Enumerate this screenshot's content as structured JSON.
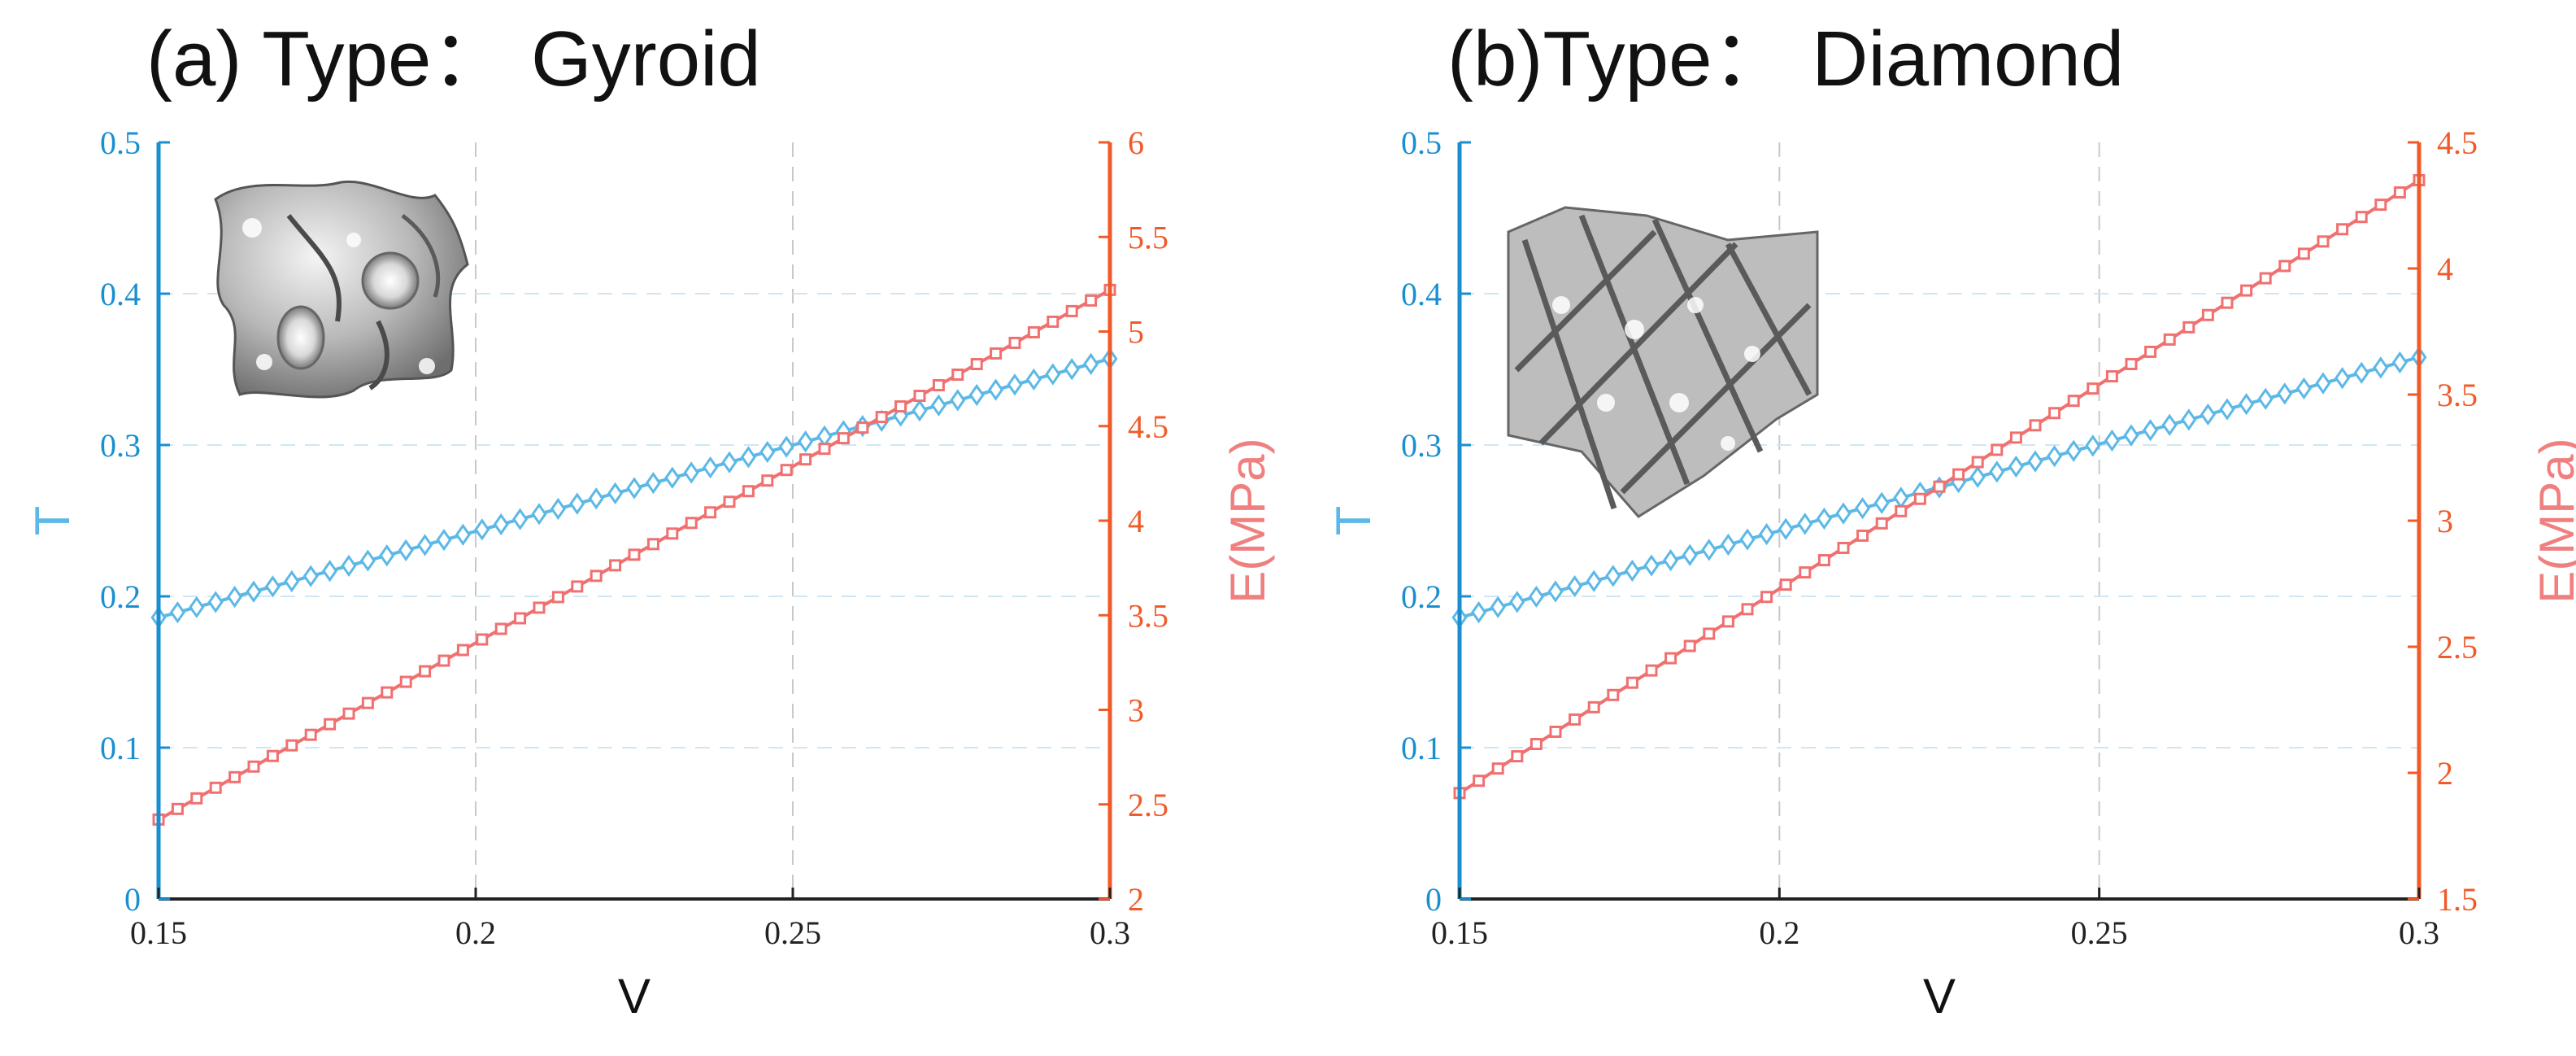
{
  "colors": {
    "left_axis": "#1a8fd0",
    "right_axis": "#f05a28",
    "series_T": "#5cb8e6",
    "series_E": "#f07070",
    "label_T": "#5cb8e6",
    "label_E": "#f08080",
    "grid": "#c9c9c9"
  },
  "chart_data": [
    {
      "type": "line",
      "title": "(a) Type： Gyroid",
      "inset": "gyroid-structure",
      "xlabel": "V",
      "ylabel": "T",
      "y2label": "E(MPa)",
      "xlim": [
        0.15,
        0.3
      ],
      "ylim": [
        0,
        0.5
      ],
      "y2lim": [
        2,
        6
      ],
      "x_ticks": [
        "0.15",
        "0.2",
        "0.25",
        "0.3"
      ],
      "y_ticks": [
        "0",
        "0.1",
        "0.2",
        "0.3",
        "0.4",
        "0.5"
      ],
      "y2_ticks": [
        "2",
        "2.5",
        "3",
        "3.5",
        "4",
        "4.5",
        "5",
        "5.5",
        "6"
      ],
      "grid": true,
      "series": [
        {
          "name": "T",
          "axis": "left",
          "marker": "diamond",
          "x_start": 0.15,
          "x_end": 0.3,
          "count": 51,
          "y_start": 0.186,
          "y_end": 0.357
        },
        {
          "name": "E(MPa)",
          "axis": "right",
          "marker": "square",
          "x_start": 0.15,
          "x_end": 0.3,
          "count": 51,
          "y_start": 2.42,
          "y_end": 5.22
        }
      ]
    },
    {
      "type": "line",
      "title": "(b)Type： Diamond",
      "inset": "diamond-structure",
      "xlabel": "V",
      "ylabel": "T",
      "y2label": "E(MPa)",
      "xlim": [
        0.15,
        0.3
      ],
      "ylim": [
        0,
        0.5
      ],
      "y2lim": [
        1.5,
        4.5
      ],
      "x_ticks": [
        "0.15",
        "0.2",
        "0.25",
        "0.3"
      ],
      "y_ticks": [
        "0",
        "0.1",
        "0.2",
        "0.3",
        "0.4",
        "0.5"
      ],
      "y2_ticks": [
        "1.5",
        "2",
        "2.5",
        "3",
        "3.5",
        "4",
        "4.5"
      ],
      "grid": true,
      "series": [
        {
          "name": "T",
          "axis": "left",
          "marker": "diamond",
          "x_start": 0.15,
          "x_end": 0.3,
          "count": 51,
          "y_start": 0.186,
          "y_end": 0.358
        },
        {
          "name": "E(MPa)",
          "axis": "right",
          "marker": "square",
          "x_start": 0.15,
          "x_end": 0.3,
          "count": 51,
          "y_start": 1.92,
          "y_end": 4.35
        }
      ]
    }
  ]
}
